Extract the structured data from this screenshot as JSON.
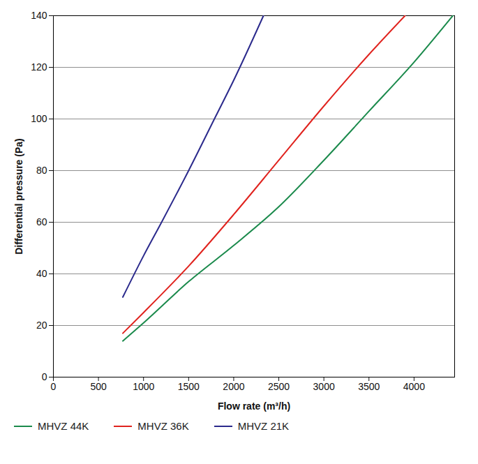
{
  "chart_data": {
    "type": "line",
    "x_label": "Flow rate (m³/h)",
    "y_label": "Differential pressure (Pa)",
    "xlim": [
      0,
      4450
    ],
    "xticks": [
      0,
      500,
      1000,
      1500,
      2000,
      2500,
      3000,
      3500,
      4000
    ],
    "ylim": [
      0,
      140
    ],
    "yticks": [
      0,
      20,
      40,
      60,
      80,
      100,
      120,
      140
    ],
    "grid": "y",
    "legend": "bottom",
    "series": [
      {
        "name": "MHVZ 44K",
        "color": "#1b8a4c",
        "x": [
          770,
          1000,
          1500,
          2000,
          2500,
          3000,
          3500,
          4000,
          4430
        ],
        "values": [
          14,
          21,
          37,
          51,
          66,
          84,
          103,
          122,
          140
        ]
      },
      {
        "name": "MHVZ 36K",
        "color": "#e0231e",
        "x": [
          770,
          1000,
          1500,
          2000,
          2500,
          3000,
          3500,
          3900
        ],
        "values": [
          17,
          25,
          43,
          63,
          84,
          105,
          125,
          140
        ]
      },
      {
        "name": "MHVZ 21K",
        "color": "#2b2a8c",
        "x": [
          770,
          1000,
          1200,
          1500,
          1800,
          2000,
          2330
        ],
        "values": [
          31,
          47,
          60,
          80,
          101,
          115,
          140
        ]
      }
    ]
  }
}
